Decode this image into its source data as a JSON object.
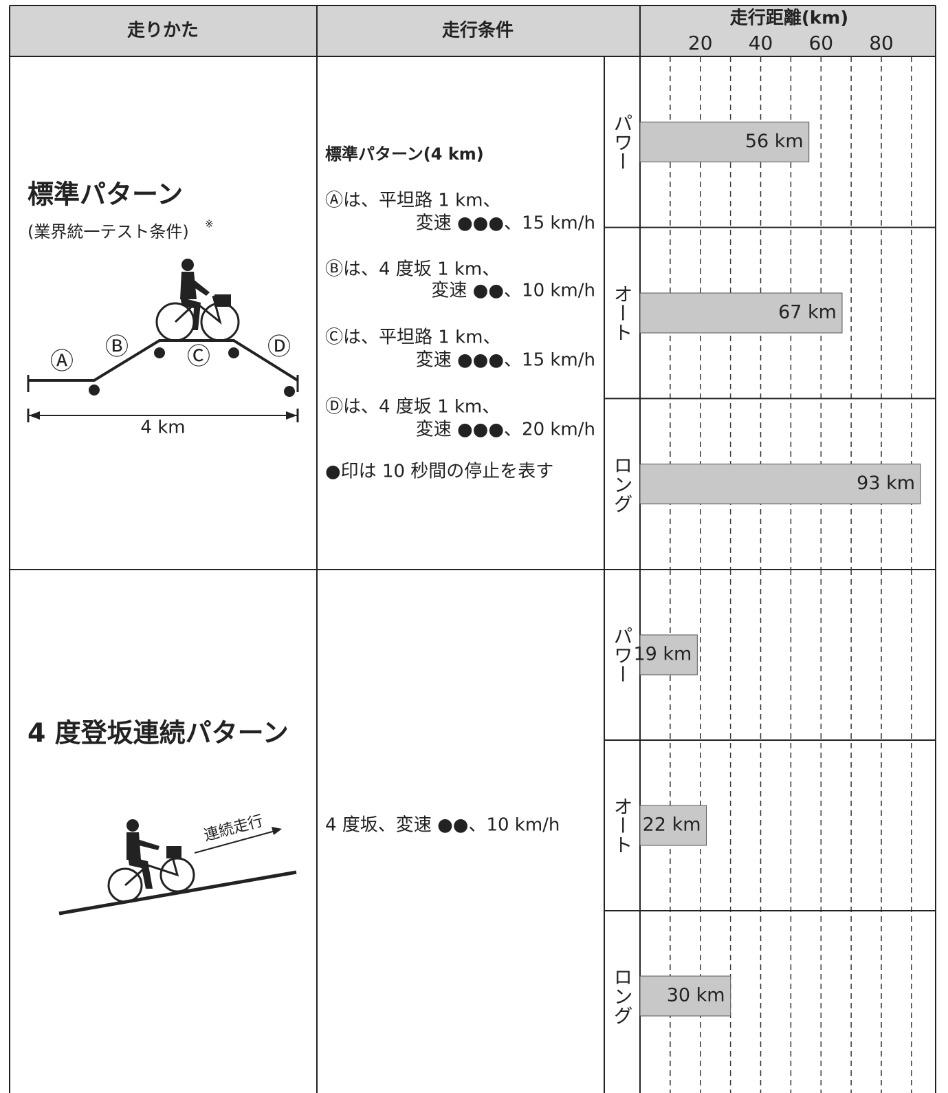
{
  "header": {
    "col_riding": "走りかた",
    "col_conditions": "走行条件",
    "axis_title": "走行距離(km)"
  },
  "rows": [
    {
      "title": "標準パターン",
      "subtitle": "(業界統一テスト条件)",
      "footnote_mark": "※",
      "diagram": {
        "points": [
          "Ⓐ",
          "Ⓑ",
          "Ⓒ",
          "Ⓓ"
        ],
        "distance": "4 km"
      },
      "conditions": [
        "標準パターン(4 km)",
        "Ⓐは、平坦路 1 km、",
        "変速 ●●●、15 km/h",
        "Ⓑは、4 度坂 1 km、",
        "変速 ●●、10 km/h",
        "Ⓒは、平坦路 1 km、",
        "変速 ●●●、15 km/h",
        "Ⓓは、4 度坂 1 km、",
        "変速 ●●●、20 km/h",
        "●印は 10 秒間の停止を表す"
      ]
    },
    {
      "title": "4 度登坂連続パターン",
      "diagram": {
        "caption": "連続走行"
      },
      "conditions": [
        "4 度坂、変速 ●●、10 km/h"
      ]
    }
  ],
  "chart_data": [
    {
      "type": "bar",
      "orientation": "horizontal",
      "categories": [
        "パワー",
        "オート",
        "ロング"
      ],
      "values": [
        56,
        67,
        93
      ],
      "value_labels": [
        "56 km",
        "67 km",
        "93 km"
      ],
      "color": "#c8c8c8",
      "xlim": [
        0,
        98
      ],
      "xticks": [
        20,
        40,
        60,
        80
      ],
      "minor_xticks": [
        10,
        30,
        50,
        70,
        90
      ],
      "grid": true
    },
    {
      "type": "bar",
      "orientation": "horizontal",
      "categories": [
        "パワー",
        "オート",
        "ロング"
      ],
      "values": [
        19,
        22,
        30
      ],
      "value_labels": [
        "19 km",
        "22 km",
        "30 km"
      ],
      "color": "#c8c8c8",
      "xlim": [
        0,
        98
      ],
      "xticks": [
        20,
        40,
        60,
        80
      ],
      "minor_xticks": [
        10,
        30,
        50,
        70,
        90
      ],
      "grid": true
    }
  ]
}
